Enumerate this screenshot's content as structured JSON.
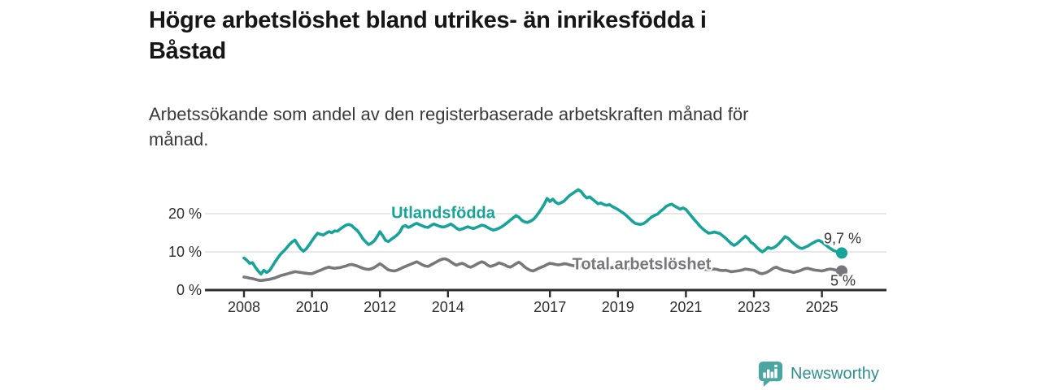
{
  "header": {
    "title_lines": [
      "Högre arbetslöshet bland utrikes- än inrikesfödda i",
      "Båstad"
    ],
    "subtitle_lines": [
      "Arbetssökande som andel av den registerbaserade arbetskraften månad för",
      "månad."
    ]
  },
  "footer": {
    "brand": "Newsworthy"
  },
  "colors": {
    "foreign_line": "#17a398",
    "total_line": "#77777c",
    "grid": "#dadada",
    "axis": "#2d2d2d",
    "tick_text": "#2d2d2d",
    "end_label_text": "#333333",
    "brand_icon": "#4ba6a3",
    "brand_text": "#2e8f8f"
  },
  "chart_data": {
    "type": "line",
    "title": "Högre arbetslöshet bland utrikes- än inrikesfödda i Båstad",
    "subtitle": "Arbetssökande som andel av den registerbaserade arbetskraften månad för månad.",
    "unit": "%",
    "grid": "horizontal-only",
    "legend": "inline-labels",
    "x_ticks": [
      2008,
      2010,
      2012,
      2014,
      2017,
      2019,
      2021,
      2023,
      2025
    ],
    "x_tick_labels": [
      "2008",
      "2010",
      "2012",
      "2014",
      "2017",
      "2019",
      "2021",
      "2023",
      "2025"
    ],
    "y_ticks": [
      0,
      10,
      20
    ],
    "y_tick_labels": [
      "0 %",
      "10 %",
      "20 %"
    ],
    "x_range": [
      2007.8,
      2026.0
    ],
    "y_range": [
      0,
      28
    ],
    "x_start": 2008.0,
    "x_step_months": 1,
    "series": [
      {
        "name": "Utlandsfödda",
        "color": "#17a398",
        "end_label": "9,7 %",
        "end_value": 9.7,
        "values": [
          8.4,
          7.8,
          7.0,
          7.2,
          6.0,
          5.0,
          4.2,
          5.2,
          4.6,
          5.1,
          6.2,
          7.4,
          8.5,
          9.5,
          10.2,
          11.0,
          11.9,
          12.6,
          13.1,
          11.9,
          10.8,
          10.2,
          10.8,
          11.8,
          12.9,
          14.0,
          14.9,
          14.6,
          14.4,
          14.9,
          15.3,
          15.0,
          15.5,
          15.4,
          16.0,
          16.5,
          17.0,
          17.2,
          16.9,
          16.2,
          15.6,
          14.6,
          13.4,
          12.6,
          11.9,
          12.3,
          12.9,
          14.0,
          15.3,
          14.2,
          13.0,
          12.7,
          13.3,
          13.8,
          14.4,
          15.2,
          16.6,
          16.9,
          16.4,
          16.7,
          17.2,
          17.5,
          17.1,
          16.8,
          16.5,
          16.4,
          16.9,
          17.3,
          17.0,
          16.7,
          16.5,
          16.6,
          16.9,
          17.3,
          16.8,
          16.2,
          15.8,
          16.0,
          16.3,
          16.6,
          16.3,
          16.1,
          16.4,
          16.7,
          17.0,
          16.8,
          16.4,
          16.0,
          15.7,
          15.9,
          16.2,
          16.6,
          17.1,
          17.7,
          18.3,
          18.9,
          19.5,
          19.1,
          18.3,
          17.9,
          17.7,
          18.0,
          18.4,
          19.2,
          20.2,
          21.3,
          22.5,
          24.0,
          23.2,
          23.8,
          23.0,
          22.6,
          22.9,
          23.3,
          24.1,
          24.8,
          25.3,
          25.8,
          26.3,
          25.8,
          24.8,
          24.1,
          24.4,
          23.8,
          23.2,
          22.6,
          22.8,
          22.4,
          22.2,
          22.4,
          21.9,
          21.5,
          21.1,
          20.6,
          20.1,
          19.5,
          18.8,
          18.1,
          17.5,
          17.3,
          17.2,
          17.4,
          17.9,
          18.6,
          19.2,
          19.6,
          19.9,
          20.6,
          21.2,
          21.9,
          22.3,
          22.5,
          22.0,
          21.6,
          21.2,
          21.5,
          21.1,
          20.2,
          19.3,
          18.4,
          17.6,
          16.7,
          16.0,
          15.4,
          14.9,
          15.0,
          15.2,
          15.0,
          14.8,
          14.2,
          13.6,
          12.9,
          12.2,
          11.7,
          12.1,
          12.8,
          13.5,
          14.1,
          13.5,
          12.5,
          12.0,
          11.2,
          10.5,
          10.0,
          10.5,
          11.2,
          10.9,
          11.1,
          11.6,
          12.3,
          13.1,
          14.0,
          13.6,
          12.9,
          12.2,
          11.6,
          11.1,
          10.9,
          11.2,
          11.5,
          12.0,
          12.4,
          12.8,
          13.0,
          12.6,
          12.0,
          11.4,
          10.9,
          10.4,
          10.1,
          9.9,
          9.7
        ]
      },
      {
        "name": "Total arbetslöshet",
        "color": "#77777c",
        "end_label": "5 %",
        "end_value": 5.0,
        "values": [
          3.4,
          3.3,
          3.1,
          3.0,
          2.8,
          2.6,
          2.5,
          2.6,
          2.7,
          2.8,
          3.0,
          3.2,
          3.5,
          3.8,
          4.0,
          4.2,
          4.4,
          4.6,
          4.8,
          4.7,
          4.6,
          4.5,
          4.4,
          4.3,
          4.3,
          4.6,
          4.9,
          5.2,
          5.5,
          5.8,
          6.0,
          5.8,
          5.7,
          5.8,
          5.9,
          6.1,
          6.3,
          6.6,
          6.7,
          6.5,
          6.3,
          6.0,
          5.7,
          5.5,
          5.4,
          5.6,
          5.9,
          6.4,
          6.9,
          6.4,
          5.8,
          5.3,
          5.1,
          5.0,
          5.2,
          5.5,
          5.9,
          6.2,
          6.5,
          6.8,
          7.1,
          7.4,
          7.0,
          6.6,
          6.3,
          6.2,
          6.6,
          7.0,
          7.4,
          7.8,
          8.1,
          8.2,
          7.9,
          7.4,
          6.9,
          6.5,
          6.8,
          7.0,
          6.7,
          6.2,
          6.0,
          6.3,
          6.7,
          7.1,
          7.4,
          7.1,
          6.5,
          6.2,
          6.4,
          6.7,
          7.1,
          6.9,
          6.6,
          6.2,
          6.0,
          6.4,
          6.9,
          7.3,
          6.8,
          6.1,
          5.6,
          5.2,
          5.0,
          5.3,
          5.7,
          6.0,
          6.3,
          6.7,
          7.0,
          6.9,
          6.7,
          6.6,
          6.7,
          6.9,
          6.8,
          6.6,
          6.4,
          6.3,
          6.2,
          6.3,
          6.4,
          6.5,
          6.3,
          6.1,
          6.0,
          6.1,
          6.2,
          6.1,
          5.9,
          5.8,
          5.9,
          6.0,
          6.1,
          6.0,
          5.8,
          5.7,
          5.6,
          5.7,
          5.8,
          5.7,
          5.6,
          5.7,
          5.9,
          6.1,
          6.3,
          6.5,
          6.7,
          6.9,
          7.0,
          6.9,
          6.8,
          6.7,
          6.5,
          6.4,
          6.3,
          6.2,
          6.1,
          6.2,
          6.0,
          5.8,
          5.7,
          5.6,
          5.5,
          5.4,
          5.3,
          5.4,
          5.5,
          5.4,
          5.2,
          5.1,
          5.2,
          5.0,
          4.8,
          4.9,
          5.0,
          5.1,
          5.3,
          5.5,
          5.4,
          5.3,
          5.2,
          4.8,
          4.4,
          4.3,
          4.5,
          4.8,
          5.3,
          5.8,
          6.0,
          5.6,
          5.3,
          5.1,
          5.0,
          4.8,
          4.6,
          4.8,
          5.0,
          5.3,
          5.6,
          5.7,
          5.5,
          5.3,
          5.2,
          5.1,
          5.0,
          5.2,
          5.4,
          5.5,
          5.4,
          5.2,
          5.1,
          5.0
        ]
      }
    ]
  }
}
